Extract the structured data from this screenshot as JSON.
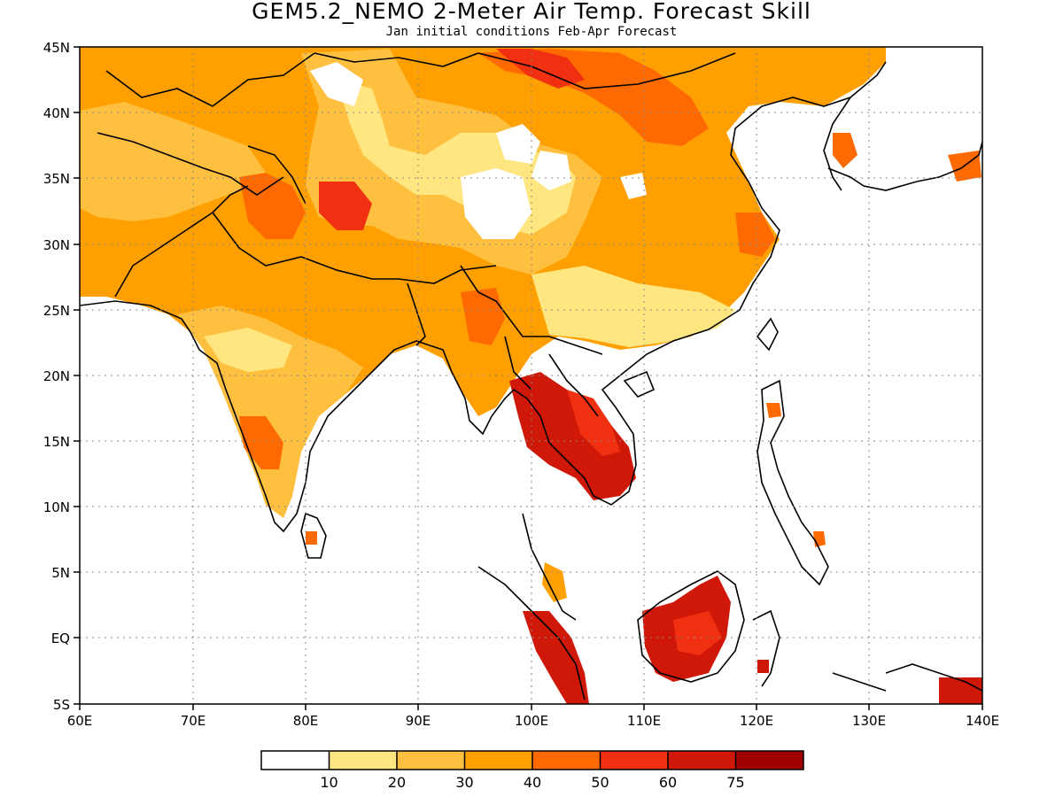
{
  "title": "GEM5.2_NEMO 2-Meter Air Temp. Forecast Skill",
  "subtitle": "Jan initial conditions  Feb-Apr Forecast",
  "map": {
    "lon_range": [
      60,
      140
    ],
    "lat_range": [
      -5,
      45
    ],
    "lon_ticks": [
      "60E",
      "70E",
      "80E",
      "90E",
      "100E",
      "110E",
      "120E",
      "130E",
      "140E"
    ],
    "lat_ticks": [
      "45N",
      "40N",
      "35N",
      "30N",
      "25N",
      "20N",
      "15N",
      "10N",
      "5N",
      "EQ",
      "5S"
    ],
    "gridlines": "dotted"
  },
  "colorbar": {
    "colors": [
      "#ffffff",
      "#ffe680",
      "#ffc040",
      "#ffa000",
      "#ff6a00",
      "#f03010",
      "#d01808",
      "#a00000"
    ],
    "labels": [
      "10",
      "20",
      "30",
      "40",
      "50",
      "60",
      "75"
    ]
  }
}
